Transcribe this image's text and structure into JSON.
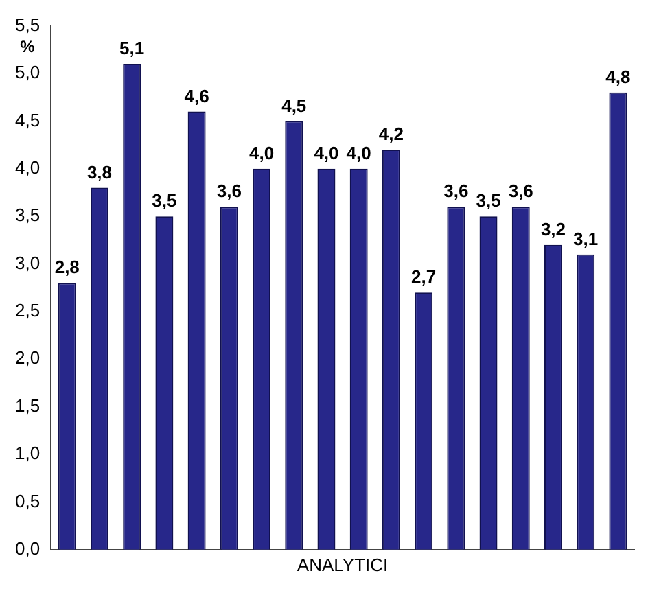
{
  "chart_data": {
    "type": "bar",
    "xlabel": "ANALYTICI",
    "ylabel": "%",
    "categories": [
      null,
      null,
      null,
      null,
      null,
      null,
      null,
      null,
      null,
      null,
      null,
      null,
      null,
      null,
      null,
      null,
      null,
      null
    ],
    "values": [
      2.8,
      3.8,
      5.1,
      3.5,
      4.6,
      3.6,
      4.0,
      4.5,
      4.0,
      4.0,
      4.2,
      2.7,
      3.6,
      3.5,
      3.6,
      3.2,
      3.1,
      4.8
    ],
    "value_labels": [
      "2,8",
      "3,8",
      "5,1",
      "3,5",
      "4,6",
      "3,6",
      "4,0",
      "4,5",
      "4,0",
      "4,0",
      "4,2",
      "2,7",
      "3,6",
      "3,5",
      "3,6",
      "3,2",
      "3,1",
      "4,8"
    ],
    "color": "#27278a",
    "ylim": [
      0,
      5.5
    ],
    "yticks": [
      {
        "value": 0,
        "label": "0,0"
      },
      {
        "value": 0.5,
        "label": "0,5"
      },
      {
        "value": 1,
        "label": "1,0"
      },
      {
        "value": 1.5,
        "label": "1,5"
      },
      {
        "value": 2,
        "label": "2,0"
      },
      {
        "value": 2.5,
        "label": "2,5"
      },
      {
        "value": 3,
        "label": "3,0"
      },
      {
        "value": 3.5,
        "label": "3,5"
      },
      {
        "value": 4,
        "label": "4,0"
      },
      {
        "value": 4.5,
        "label": "4,5"
      },
      {
        "value": 5,
        "label": "5,0"
      },
      {
        "value": 5.5,
        "label": "5,5"
      }
    ],
    "grid": false,
    "legend": false
  }
}
